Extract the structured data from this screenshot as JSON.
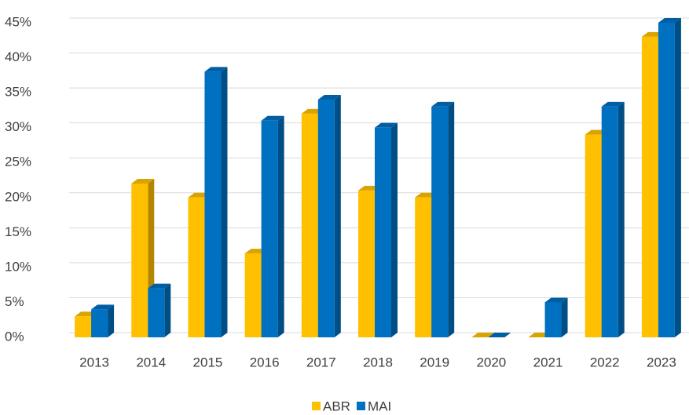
{
  "chart_data": {
    "type": "bar3d",
    "categories": [
      "2013",
      "2014",
      "2015",
      "2016",
      "2017",
      "2018",
      "2019",
      "2020",
      "2021",
      "2022",
      "2023"
    ],
    "series": [
      {
        "name": "ABR",
        "color": "#FFC000",
        "values": [
          3,
          22,
          20,
          12,
          32,
          21,
          20,
          0,
          0,
          29,
          43
        ]
      },
      {
        "name": "MAI",
        "color": "#0070C0",
        "values": [
          4,
          7,
          38,
          31,
          34,
          30,
          33,
          0,
          5,
          33,
          45
        ]
      }
    ],
    "ylim": [
      0,
      45
    ],
    "yticks": [
      {
        "value": 0,
        "label": "0%"
      },
      {
        "value": 5,
        "label": "5%"
      },
      {
        "value": 10,
        "label": "10%"
      },
      {
        "value": 15,
        "label": "15%"
      },
      {
        "value": 20,
        "label": "20%"
      },
      {
        "value": 25,
        "label": "25%"
      },
      {
        "value": 30,
        "label": "30%"
      },
      {
        "value": 35,
        "label": "35%"
      },
      {
        "value": 40,
        "label": "40%"
      },
      {
        "value": 45,
        "label": "45%"
      }
    ],
    "grid": true,
    "legend": "bottom"
  }
}
